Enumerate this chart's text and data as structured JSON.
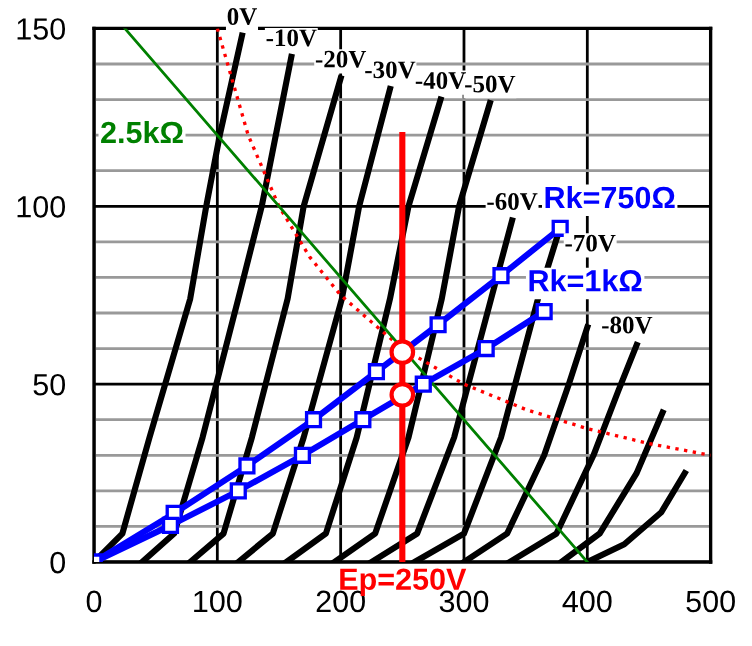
{
  "chart_data": {
    "type": "line",
    "xlim": [
      0,
      500
    ],
    "ylim": [
      0,
      150
    ],
    "xticks": [
      0,
      100,
      200,
      300,
      400,
      500
    ],
    "yticks": [
      0,
      {
        "value": 10,
        "label": null
      },
      {
        "value": 20,
        "label": null
      },
      {
        "value": 30,
        "label": null
      },
      {
        "value": 40,
        "label": null
      },
      50,
      {
        "value": 60,
        "label": null
      },
      {
        "value": 70,
        "label": null
      },
      {
        "value": 80,
        "label": null
      },
      {
        "value": 90,
        "label": null
      },
      100,
      {
        "value": 110,
        "label": null
      },
      {
        "value": 120,
        "label": null
      },
      {
        "value": 130,
        "label": null
      },
      {
        "value": 140,
        "label": null
      },
      150
    ],
    "grid": true,
    "legend": false,
    "series": [
      {
        "name": "0V",
        "color": "#000000",
        "x": [
          0,
          23,
          45,
          78,
          91,
          102,
          120
        ],
        "values": [
          0,
          8,
          35,
          74,
          100,
          120,
          148
        ]
      },
      {
        "name": "-10V",
        "color": "#000000",
        "x": [
          39,
          65,
          88,
          117,
          136,
          160
        ],
        "values": [
          0,
          8,
          35,
          74,
          100,
          142
        ]
      },
      {
        "name": "-20V",
        "color": "#000000",
        "x": [
          78,
          105,
          128,
          157,
          170,
          200
        ],
        "values": [
          0,
          8,
          35,
          74,
          100,
          136
        ]
      },
      {
        "name": "-30V",
        "color": "#000000",
        "x": [
          117,
          145,
          170,
          201,
          215,
          240
        ],
        "values": [
          0,
          8,
          35,
          74,
          100,
          133
        ]
      },
      {
        "name": "-40V",
        "color": "#000000",
        "x": [
          156,
          188,
          213,
          240,
          255,
          281
        ],
        "values": [
          0,
          8,
          35,
          74,
          100,
          130
        ]
      },
      {
        "name": "-50V",
        "color": "#000000",
        "x": [
          195,
          228,
          255,
          282,
          296,
          321
        ],
        "values": [
          0,
          8,
          35,
          74,
          100,
          129
        ]
      },
      {
        "name": "-60V",
        "color": "#000000",
        "x": [
          225,
          262,
          292,
          322,
          339
        ],
        "values": [
          0,
          8,
          35,
          74,
          96
        ]
      },
      {
        "name": "-70V",
        "color": "#000000",
        "x": [
          260,
          300,
          330,
          360,
          377
        ],
        "values": [
          0,
          8,
          35,
          74,
          93
        ]
      },
      {
        "name": "-80V",
        "color": "#000000",
        "x": [
          300,
          335,
          365,
          385,
          400
        ],
        "values": [
          0,
          8,
          30,
          50,
          66
        ]
      },
      {
        "color": "#000000",
        "x": [
          337,
          375,
          405,
          425,
          440
        ],
        "values": [
          0,
          8,
          30,
          48,
          61
        ]
      },
      {
        "color": "#000000",
        "x": [
          379,
          410,
          440,
          461
        ],
        "values": [
          0,
          8,
          25,
          42
        ]
      },
      {
        "color": "#000000",
        "x": [
          400,
          430,
          460,
          479
        ],
        "values": [
          0,
          5,
          14,
          25
        ]
      },
      {
        "color": "#ff0000",
        "line_style": "dotted",
        "x": [
          100,
          125,
          150,
          175,
          200,
          250,
          300,
          350,
          400,
          450,
          500
        ],
        "values": [
          150,
          120,
          100,
          85.7,
          75,
          60,
          50,
          42.9,
          37.5,
          33.3,
          30
        ]
      },
      {
        "name": "2.5kΩ",
        "color": "#008000",
        "x": [
          25,
          400
        ],
        "values": [
          150,
          0
        ]
      },
      {
        "name": "Rk=750Ω",
        "color": "#0000ff",
        "marker": "square",
        "x": [
          0,
          65,
          124,
          178,
          229,
          279,
          330,
          378
        ],
        "values": [
          0,
          13.7,
          27,
          40,
          53.5,
          66.7,
          80.5,
          93.8
        ]
      },
      {
        "name": "Rk=1kΩ",
        "color": "#0000ff",
        "marker": "square",
        "x": [
          0,
          62,
          117,
          169,
          218,
          267,
          318,
          365
        ],
        "values": [
          0,
          10.3,
          20,
          30,
          40,
          50,
          60,
          70.4
        ]
      },
      {
        "name": "Ep=250V",
        "color": "#ff0000",
        "x": [
          250,
          250
        ],
        "values": [
          0,
          120
        ]
      },
      {
        "type": "scatter",
        "color": "#ff0000",
        "marker": "circle",
        "x": [
          250,
          250
        ],
        "values": [
          59,
          47
        ]
      }
    ]
  }
}
